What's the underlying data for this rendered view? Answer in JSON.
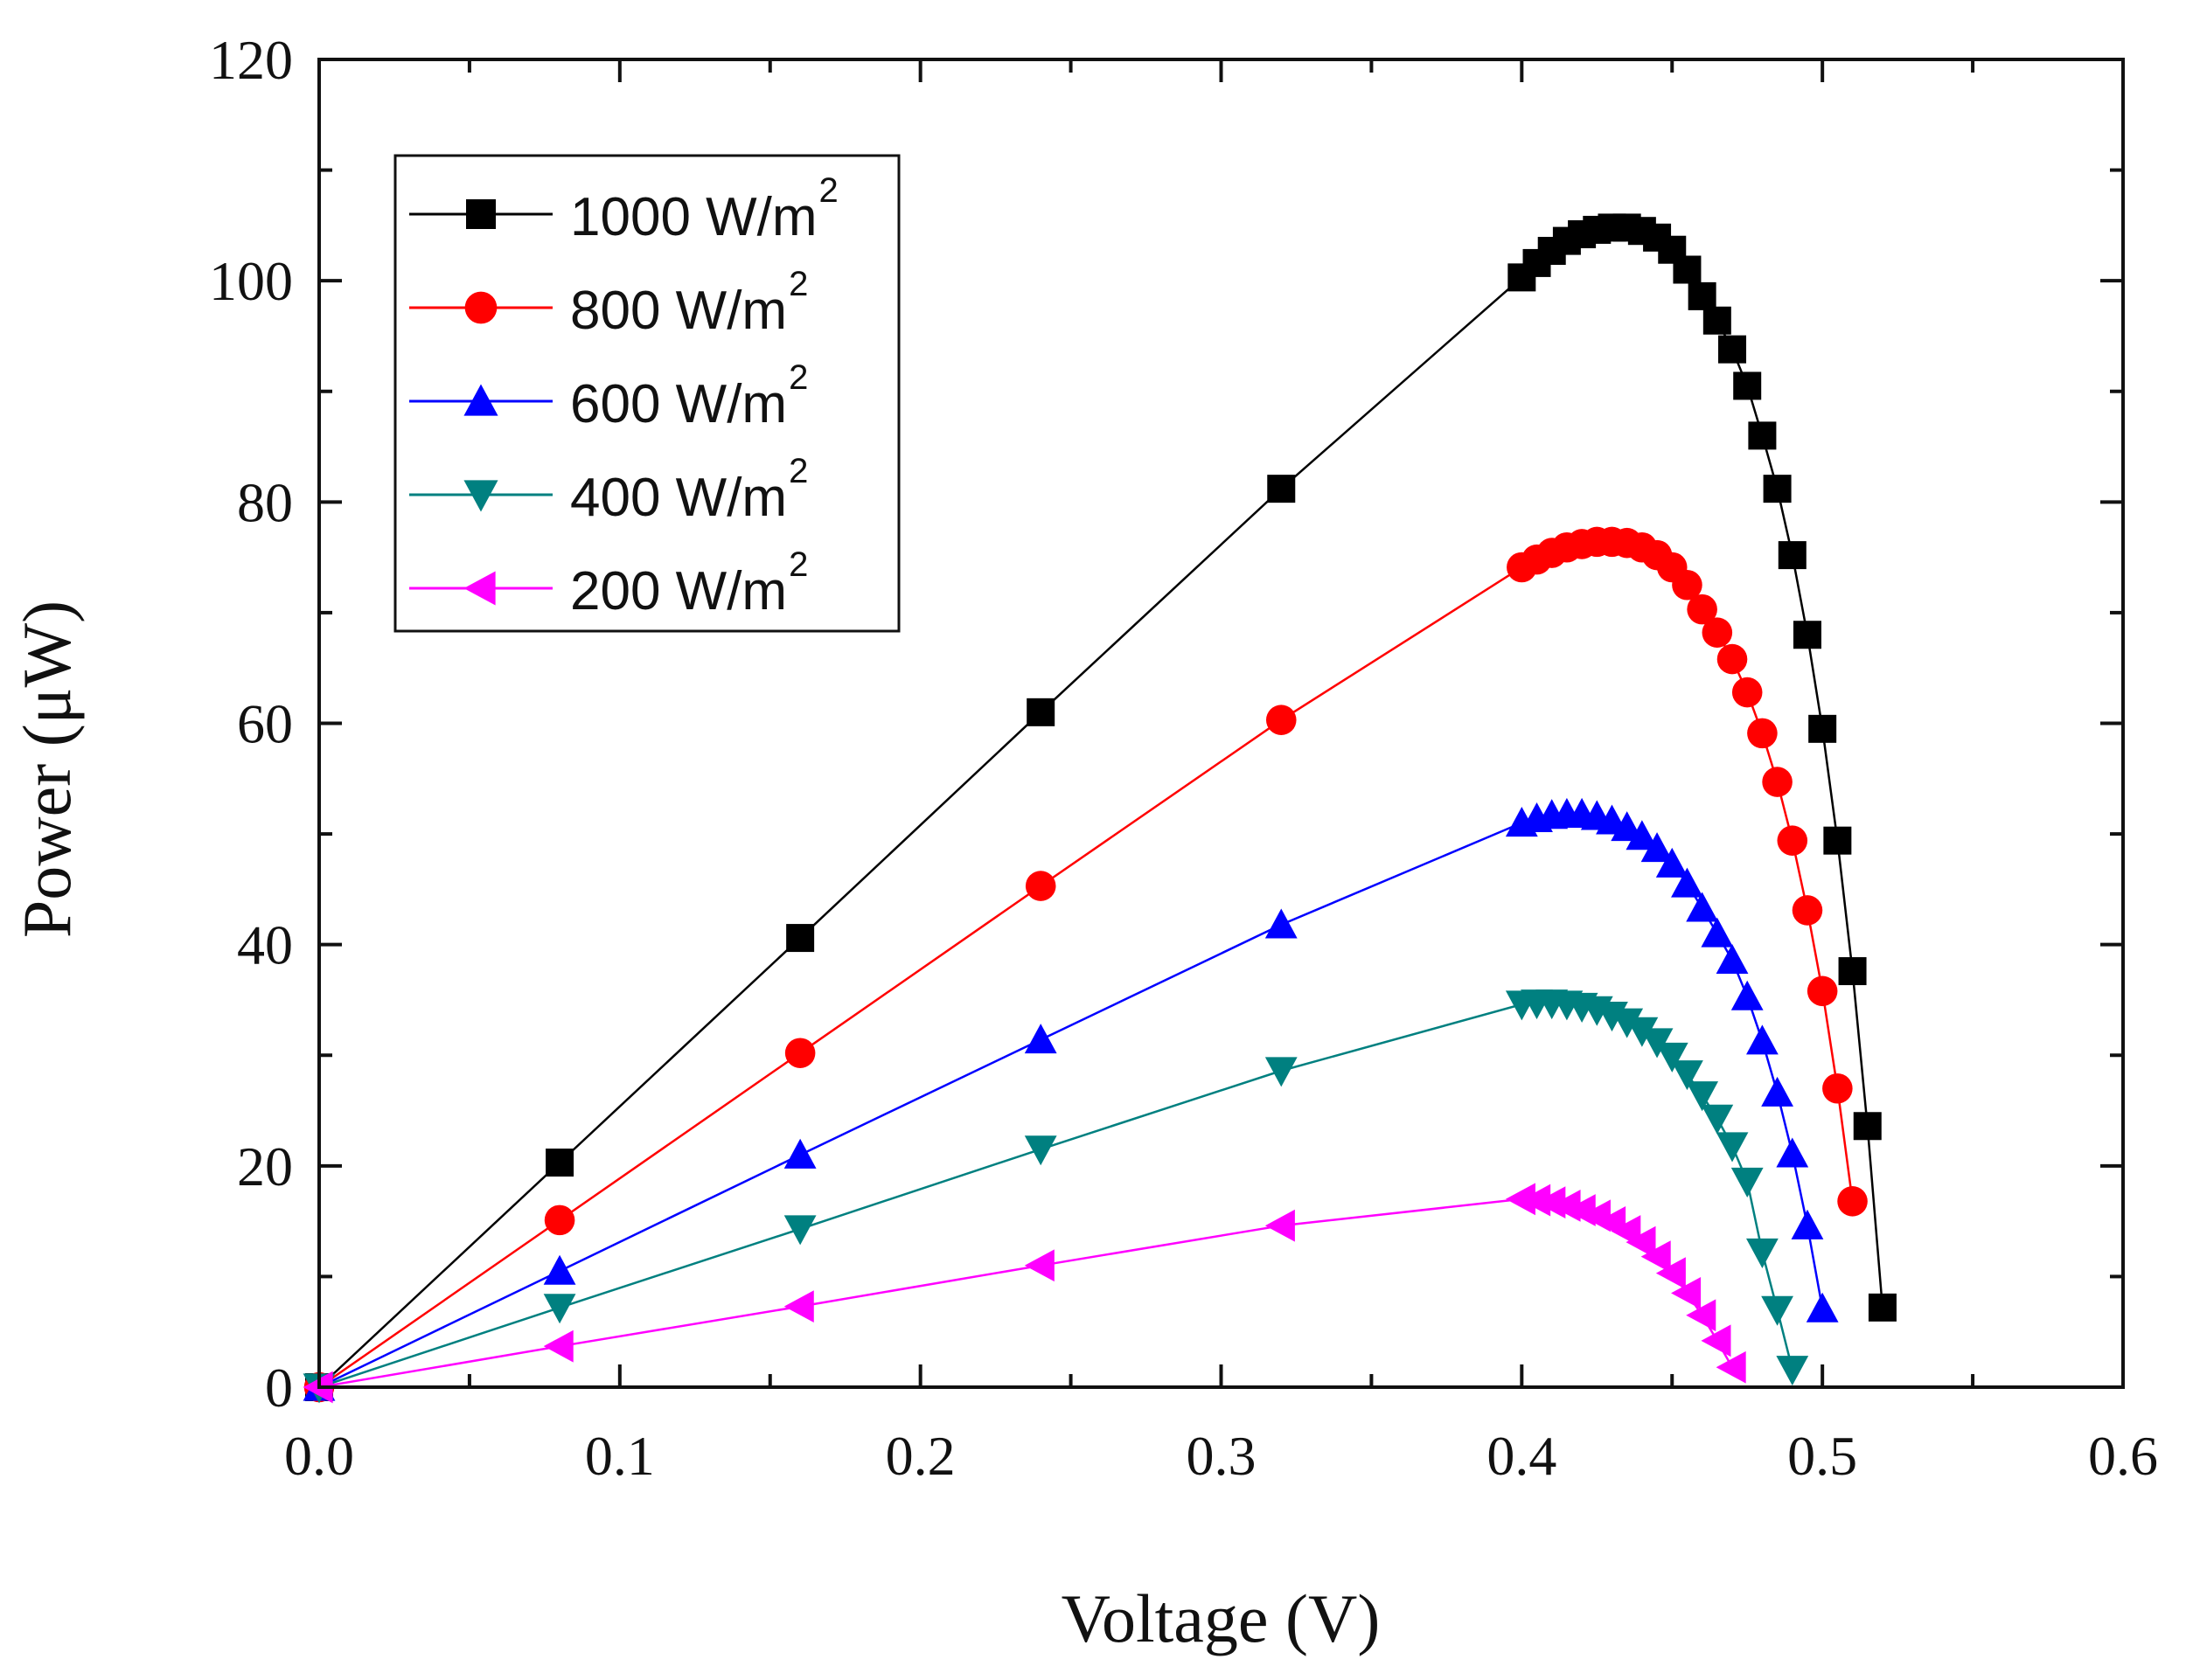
{
  "chart_data": {
    "type": "line",
    "title": "",
    "xlabel": "Voltage (V)",
    "ylabel": "Power (μW)",
    "xlim": [
      0.0,
      0.6
    ],
    "ylim": [
      0,
      120
    ],
    "xticks": [
      "0.0",
      "0.1",
      "0.2",
      "0.3",
      "0.4",
      "0.5",
      "0.6"
    ],
    "yticks": [
      "0",
      "20",
      "40",
      "60",
      "80",
      "100",
      "120"
    ],
    "grid": false,
    "legend_position": "top-left",
    "series": [
      {
        "name": "1000 W/m",
        "sup": "2",
        "color": "#000000",
        "marker": "square",
        "x": [
          0,
          0.08,
          0.16,
          0.24,
          0.32,
          0.4,
          0.405,
          0.41,
          0.415,
          0.42,
          0.425,
          0.43,
          0.435,
          0.44,
          0.445,
          0.45,
          0.455,
          0.46,
          0.465,
          0.47,
          0.475,
          0.48,
          0.485,
          0.49,
          0.495,
          0.5,
          0.505,
          0.51,
          0.515,
          0.52
        ],
        "y": [
          0,
          20.3,
          40.6,
          61.0,
          81.2,
          100.3,
          101.6,
          102.7,
          103.6,
          104.2,
          104.6,
          104.8,
          104.8,
          104.5,
          103.9,
          102.8,
          101.0,
          98.6,
          96.4,
          93.8,
          90.5,
          86.0,
          81.2,
          75.2,
          68.0,
          59.5,
          49.4,
          37.6,
          23.6,
          7.2
        ]
      },
      {
        "name": "800 W/m",
        "sup": "2",
        "color": "#ff0000",
        "marker": "circle",
        "x": [
          0,
          0.08,
          0.16,
          0.24,
          0.32,
          0.4,
          0.405,
          0.41,
          0.415,
          0.42,
          0.425,
          0.43,
          0.435,
          0.44,
          0.445,
          0.45,
          0.455,
          0.46,
          0.465,
          0.47,
          0.475,
          0.48,
          0.485,
          0.49,
          0.495,
          0.5,
          0.505,
          0.51
        ],
        "y": [
          0,
          15.1,
          30.2,
          45.3,
          60.3,
          74.1,
          74.8,
          75.4,
          75.9,
          76.2,
          76.4,
          76.4,
          76.3,
          75.9,
          75.2,
          74.1,
          72.5,
          70.3,
          68.2,
          65.8,
          62.8,
          59.1,
          54.7,
          49.4,
          43.1,
          35.8,
          27.0,
          16.8
        ]
      },
      {
        "name": "600 W/m",
        "sup": "2",
        "color": "#0000ff",
        "marker": "triangle-up",
        "x": [
          0,
          0.08,
          0.16,
          0.24,
          0.32,
          0.4,
          0.405,
          0.41,
          0.415,
          0.42,
          0.425,
          0.43,
          0.435,
          0.44,
          0.445,
          0.45,
          0.455,
          0.46,
          0.465,
          0.47,
          0.475,
          0.48,
          0.485,
          0.49,
          0.495,
          0.5
        ],
        "y": [
          0,
          10.5,
          21.0,
          31.4,
          41.8,
          51.0,
          51.4,
          51.7,
          51.8,
          51.8,
          51.6,
          51.2,
          50.6,
          49.8,
          48.7,
          47.3,
          45.5,
          43.3,
          41.0,
          38.6,
          35.3,
          31.3,
          26.6,
          21.1,
          14.6,
          7.1
        ]
      },
      {
        "name": "400 W/m",
        "sup": "2",
        "color": "#008080",
        "marker": "triangle-down",
        "x": [
          0,
          0.08,
          0.16,
          0.24,
          0.32,
          0.4,
          0.405,
          0.41,
          0.415,
          0.42,
          0.425,
          0.43,
          0.435,
          0.44,
          0.445,
          0.45,
          0.455,
          0.46,
          0.465,
          0.47,
          0.475,
          0.48,
          0.485,
          0.49
        ],
        "y": [
          0,
          7.2,
          14.3,
          21.5,
          28.6,
          34.6,
          34.7,
          34.7,
          34.6,
          34.4,
          34.1,
          33.6,
          33.0,
          32.2,
          31.2,
          29.9,
          28.3,
          26.4,
          24.3,
          21.8,
          18.6,
          12.2,
          7.0,
          1.6
        ]
      },
      {
        "name": "200 W/m",
        "sup": "2",
        "color": "#ff00ff",
        "marker": "triangle-left",
        "x": [
          0,
          0.08,
          0.16,
          0.24,
          0.32,
          0.4,
          0.405,
          0.41,
          0.415,
          0.42,
          0.425,
          0.43,
          0.435,
          0.44,
          0.445,
          0.45,
          0.455,
          0.46,
          0.465,
          0.47
        ],
        "y": [
          0,
          3.7,
          7.3,
          11.0,
          14.6,
          17.0,
          16.9,
          16.7,
          16.4,
          16.0,
          15.5,
          14.9,
          14.1,
          13.1,
          11.8,
          10.3,
          8.5,
          6.5,
          4.2,
          1.8
        ]
      }
    ]
  }
}
